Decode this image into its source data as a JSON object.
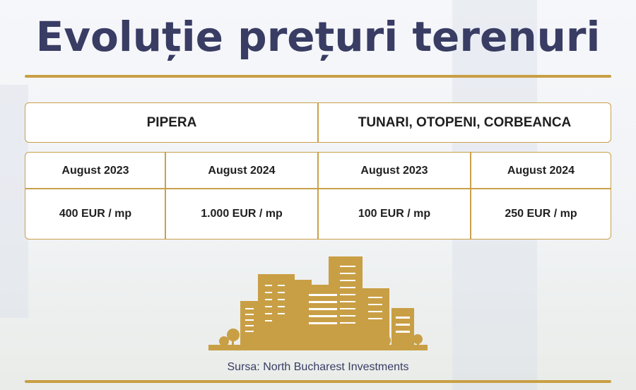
{
  "title": "Evoluție prețuri terenuri",
  "colors": {
    "title": "#393c63",
    "accent_gold": "#c99f45",
    "text": "#1f1f1f"
  },
  "regions": [
    {
      "name": "PIPERA",
      "periods": [
        {
          "label": "August 2023",
          "price": "400 EUR / mp"
        },
        {
          "label": "August 2024",
          "price": "1.000 EUR / mp"
        }
      ]
    },
    {
      "name": "TUNARI, OTOPENI, CORBEANCA",
      "periods": [
        {
          "label": "August 2023",
          "price": "100 EUR / mp"
        },
        {
          "label": "August 2024",
          "price": "250 EUR / mp"
        }
      ]
    }
  ],
  "illustration": "city-buildings-icon",
  "source": "Sursa: North Bucharest Investments"
}
